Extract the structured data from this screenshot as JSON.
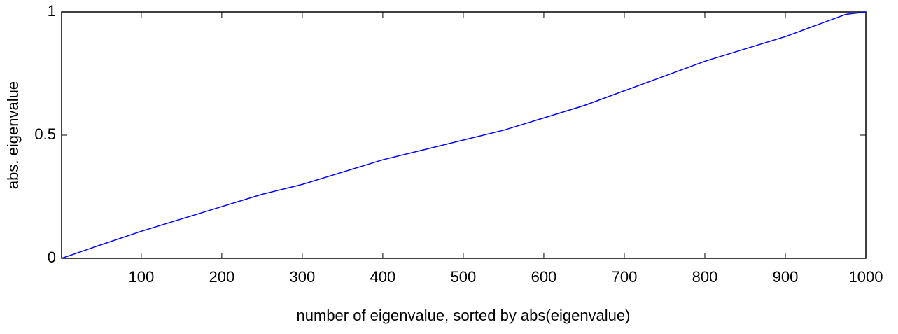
{
  "chart_data": {
    "type": "line",
    "xlabel": "number of eigenvalue, sorted by abs(eigenvalue)",
    "ylabel": "abs. eigenvalue",
    "x": [
      1,
      50,
      100,
      150,
      200,
      250,
      300,
      350,
      400,
      450,
      500,
      550,
      600,
      650,
      700,
      750,
      800,
      850,
      900,
      950,
      975,
      1000
    ],
    "series": [
      {
        "color": "#0000ff",
        "values": [
          0,
          0.055,
          0.11,
          0.16,
          0.21,
          0.26,
          0.3,
          0.35,
          0.4,
          0.44,
          0.48,
          0.52,
          0.57,
          0.62,
          0.68,
          0.74,
          0.8,
          0.85,
          0.9,
          0.96,
          0.99,
          1.0
        ]
      }
    ],
    "xlim": [
      1,
      1000
    ],
    "ylim": [
      0,
      1
    ],
    "xticks": [
      100,
      200,
      300,
      400,
      500,
      600,
      700,
      800,
      900,
      1000
    ],
    "yticks": [
      0,
      0.5,
      1
    ],
    "grid": false
  }
}
